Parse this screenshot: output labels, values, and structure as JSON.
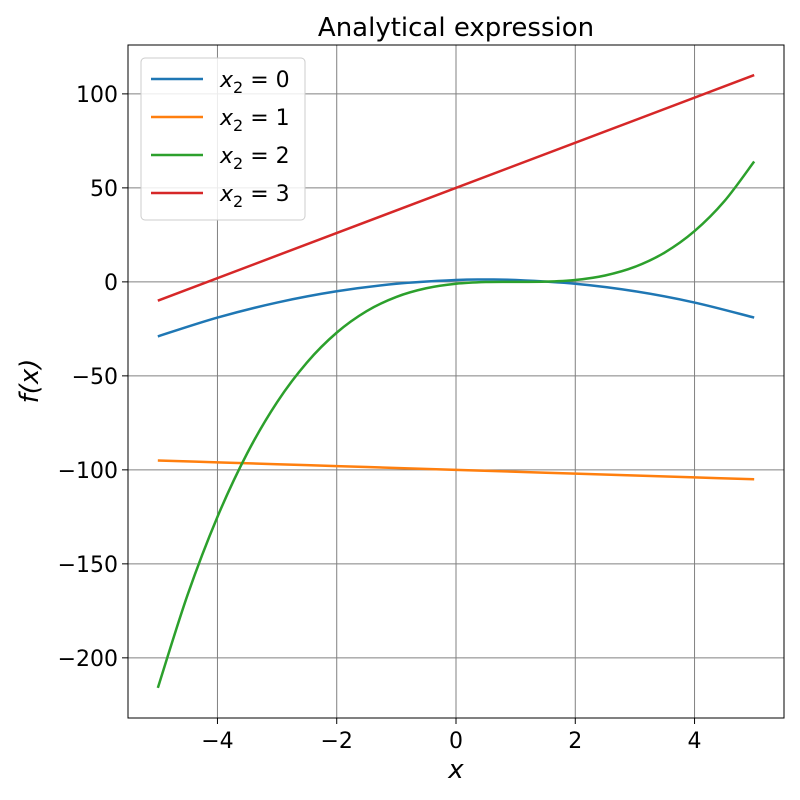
{
  "chart_data": {
    "type": "line",
    "title": "Analytical expression",
    "xlabel": "x",
    "ylabel": "f(x)",
    "xlim": [
      -5.5,
      5.5
    ],
    "ylim": [
      -232,
      126
    ],
    "xticks": [
      -4,
      -2,
      0,
      2,
      4
    ],
    "xtick_labels": [
      "−4",
      "−2",
      "0",
      "2",
      "4"
    ],
    "yticks": [
      -200,
      -150,
      -100,
      -50,
      0,
      50,
      100
    ],
    "ytick_labels": [
      "−200",
      "−150",
      "−100",
      "−50",
      "0",
      "50",
      "100"
    ],
    "grid": true,
    "legend_position": "top-left",
    "series": [
      {
        "name": "x₂ = 0",
        "legend": {
          "var": "x",
          "sub": "2",
          "value": "0"
        },
        "color": "#1f77b4",
        "x": [
          -5,
          -4,
          -3,
          -2,
          -1,
          0,
          0.5,
          1,
          2,
          3,
          4,
          5
        ],
        "y": [
          -29,
          -19,
          -11,
          -5,
          -1,
          1,
          1.25,
          1,
          -1,
          -5,
          -11,
          -19
        ]
      },
      {
        "name": "x₂ = 1",
        "legend": {
          "var": "x",
          "sub": "2",
          "value": "1"
        },
        "color": "#ff7f0e",
        "x": [
          -5,
          -4,
          -3,
          -2,
          -1,
          0,
          1,
          2,
          3,
          4,
          5
        ],
        "y": [
          -95,
          -96,
          -97,
          -98,
          -99,
          -100,
          -101,
          -102,
          -103,
          -104,
          -105
        ]
      },
      {
        "name": "x₂ = 2",
        "legend": {
          "var": "x",
          "sub": "2",
          "value": "2"
        },
        "color": "#2ca02c",
        "x": [
          -5,
          -4.5,
          -4,
          -3.5,
          -3,
          -2.5,
          -2,
          -1.5,
          -1,
          -0.5,
          0,
          0.5,
          1,
          1.5,
          2,
          2.5,
          3,
          3.5,
          4,
          4.5,
          5
        ],
        "y": [
          -216,
          -166.4,
          -125,
          -91.1,
          -64,
          -42.9,
          -27,
          -15.6,
          -8,
          -3.4,
          -1,
          -0.1,
          0,
          0.1,
          1,
          3.4,
          8,
          15.6,
          27,
          42.9,
          64
        ]
      },
      {
        "name": "x₂ = 3",
        "legend": {
          "var": "x",
          "sub": "2",
          "value": "3"
        },
        "color": "#d62728",
        "x": [
          -5,
          5
        ],
        "y": [
          -10,
          110
        ]
      }
    ]
  }
}
